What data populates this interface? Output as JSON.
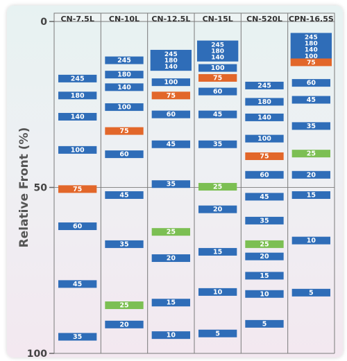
{
  "chart_data": {
    "type": "gel-ladder",
    "ylabel": "Relative Front (%)",
    "ylim": [
      0,
      100
    ],
    "yticks": [
      "0",
      "50",
      "100"
    ],
    "colors": {
      "blue": "#2f6db8",
      "orange": "#e2672a",
      "green": "#7cbf53"
    },
    "lanes": [
      {
        "name": "CN-7.5L",
        "bands": [
          {
            "label": "245",
            "y": 17.2,
            "color": "blue"
          },
          {
            "label": "180",
            "y": 22.3,
            "color": "blue"
          },
          {
            "label": "140",
            "y": 28.7,
            "color": "blue"
          },
          {
            "label": "100",
            "y": 38.7,
            "color": "blue"
          },
          {
            "label": "75",
            "y": 50.5,
            "color": "orange"
          },
          {
            "label": "60",
            "y": 61.7,
            "color": "blue"
          },
          {
            "label": "45",
            "y": 79.1,
            "color": "blue"
          },
          {
            "label": "35",
            "y": 95.0,
            "color": "blue"
          }
        ]
      },
      {
        "name": "CN-10L",
        "bands": [
          {
            "label": "245",
            "y": 11.7,
            "color": "blue"
          },
          {
            "label": "180",
            "y": 16.0,
            "color": "blue"
          },
          {
            "label": "140",
            "y": 19.8,
            "color": "blue"
          },
          {
            "label": "100",
            "y": 25.8,
            "color": "blue"
          },
          {
            "label": "75",
            "y": 33.0,
            "color": "orange"
          },
          {
            "label": "60",
            "y": 40.0,
            "color": "blue"
          },
          {
            "label": "45",
            "y": 52.3,
            "color": "blue"
          },
          {
            "label": "35",
            "y": 67.1,
            "color": "blue"
          },
          {
            "label": "25",
            "y": 85.5,
            "color": "green"
          },
          {
            "label": "20",
            "y": 91.3,
            "color": "blue"
          }
        ]
      },
      {
        "name": "CN-12.5L",
        "bands": [
          {
            "label": "245",
            "y": 9.8,
            "color": "blue",
            "stack": true
          },
          {
            "label": "180",
            "y": 11.7,
            "color": "blue",
            "stack": true
          },
          {
            "label": "140",
            "y": 13.6,
            "color": "blue",
            "stack": true
          },
          {
            "label": "100",
            "y": 18.3,
            "color": "blue"
          },
          {
            "label": "75",
            "y": 22.3,
            "color": "orange"
          },
          {
            "label": "60",
            "y": 28.0,
            "color": "blue"
          },
          {
            "label": "45",
            "y": 37.0,
            "color": "blue"
          },
          {
            "label": "35",
            "y": 49.0,
            "color": "blue"
          },
          {
            "label": "25",
            "y": 63.4,
            "color": "green"
          },
          {
            "label": "20",
            "y": 71.3,
            "color": "blue"
          },
          {
            "label": "15",
            "y": 84.7,
            "color": "blue"
          },
          {
            "label": "10",
            "y": 94.5,
            "color": "blue"
          }
        ]
      },
      {
        "name": "CN-15L",
        "bands": [
          {
            "label": "245",
            "y": 7.0,
            "color": "blue",
            "stack": true
          },
          {
            "label": "180",
            "y": 8.9,
            "color": "blue",
            "stack": true
          },
          {
            "label": "140",
            "y": 10.8,
            "color": "blue",
            "stack": true
          },
          {
            "label": "100",
            "y": 14.0,
            "color": "blue"
          },
          {
            "label": "75",
            "y": 17.0,
            "color": "orange"
          },
          {
            "label": "60",
            "y": 21.1,
            "color": "blue"
          },
          {
            "label": "45",
            "y": 28.0,
            "color": "blue"
          },
          {
            "label": "35",
            "y": 37.0,
            "color": "blue"
          },
          {
            "label": "25",
            "y": 49.8,
            "color": "green"
          },
          {
            "label": "20",
            "y": 56.6,
            "color": "blue"
          },
          {
            "label": "15",
            "y": 69.4,
            "color": "blue"
          },
          {
            "label": "10",
            "y": 81.5,
            "color": "blue"
          },
          {
            "label": "5",
            "y": 94.0,
            "color": "blue"
          }
        ]
      },
      {
        "name": "CN-520L",
        "bands": [
          {
            "label": "245",
            "y": 19.3,
            "color": "blue"
          },
          {
            "label": "180",
            "y": 24.2,
            "color": "blue"
          },
          {
            "label": "140",
            "y": 28.9,
            "color": "blue"
          },
          {
            "label": "100",
            "y": 35.3,
            "color": "blue"
          },
          {
            "label": "75",
            "y": 40.6,
            "color": "orange"
          },
          {
            "label": "60",
            "y": 46.2,
            "color": "blue"
          },
          {
            "label": "45",
            "y": 52.8,
            "color": "blue"
          },
          {
            "label": "35",
            "y": 60.0,
            "color": "blue"
          },
          {
            "label": "25",
            "y": 67.1,
            "color": "green"
          },
          {
            "label": "20",
            "y": 70.8,
            "color": "blue"
          },
          {
            "label": "15",
            "y": 76.6,
            "color": "blue"
          },
          {
            "label": "10",
            "y": 82.1,
            "color": "blue"
          },
          {
            "label": "5",
            "y": 91.1,
            "color": "blue"
          }
        ]
      },
      {
        "name": "CPN-16.5S",
        "bands": [
          {
            "label": "245",
            "y": 4.7,
            "color": "blue",
            "stack": true
          },
          {
            "label": "180",
            "y": 6.6,
            "color": "blue",
            "stack": true
          },
          {
            "label": "140",
            "y": 8.5,
            "color": "blue",
            "stack": true
          },
          {
            "label": "100",
            "y": 10.4,
            "color": "blue",
            "stack": true
          },
          {
            "label": "75",
            "y": 12.3,
            "color": "orange",
            "stack": true
          },
          {
            "label": "60",
            "y": 18.5,
            "color": "blue"
          },
          {
            "label": "45",
            "y": 23.6,
            "color": "blue"
          },
          {
            "label": "35",
            "y": 31.5,
            "color": "blue"
          },
          {
            "label": "25",
            "y": 39.8,
            "color": "green"
          },
          {
            "label": "20",
            "y": 46.2,
            "color": "blue"
          },
          {
            "label": "15",
            "y": 52.3,
            "color": "blue"
          },
          {
            "label": "10",
            "y": 66.0,
            "color": "blue"
          },
          {
            "label": "5",
            "y": 81.7,
            "color": "blue"
          }
        ]
      }
    ]
  }
}
